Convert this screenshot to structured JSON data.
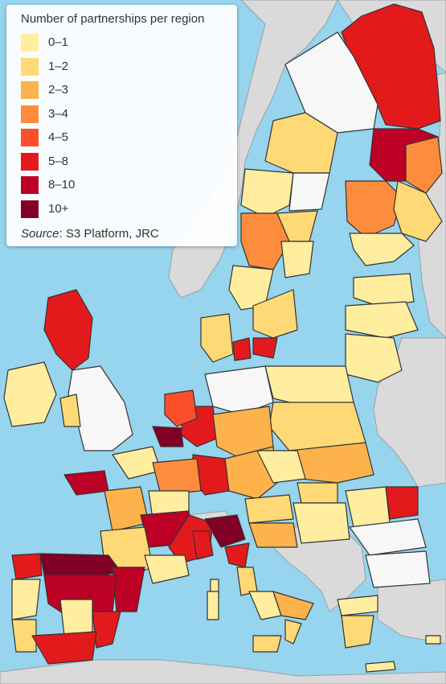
{
  "legend": {
    "title": "Number of partnerships per region",
    "items": [
      {
        "label": "0–1",
        "color": "#ffeda0"
      },
      {
        "label": "1–2",
        "color": "#fed976"
      },
      {
        "label": "2–3",
        "color": "#feb24c"
      },
      {
        "label": "3–4",
        "color": "#fd8d3c"
      },
      {
        "label": "4–5",
        "color": "#fc4e2a"
      },
      {
        "label": "5–8",
        "color": "#e31a1c"
      },
      {
        "label": "8–10",
        "color": "#bd0026"
      },
      {
        "label": "10+",
        "color": "#800026"
      }
    ],
    "source_label": "Source",
    "source_text": ": S3 Platform, JRC"
  },
  "colors": {
    "sea": "#97d4ee",
    "non_eu_land": "#dadada",
    "no_data_region": "#f7f7f7",
    "region_border": "#333333"
  }
}
